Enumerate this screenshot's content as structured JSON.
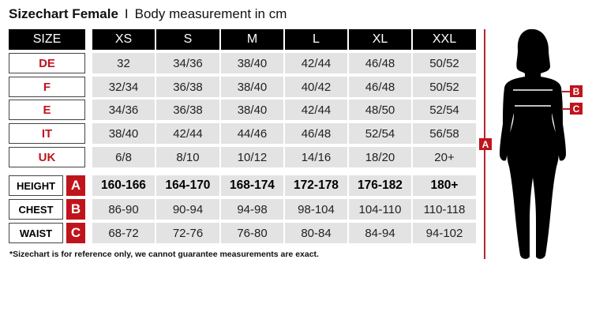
{
  "title": {
    "bold": "Sizechart Female",
    "separator": "I",
    "subtitle": "Body measurement in cm"
  },
  "table": {
    "header_label": "SIZE",
    "sizes": [
      "XS",
      "S",
      "M",
      "L",
      "XL",
      "XXL"
    ],
    "systems": [
      {
        "label": "DE",
        "values": [
          "32",
          "34/36",
          "38/40",
          "42/44",
          "46/48",
          "50/52"
        ]
      },
      {
        "label": "F",
        "values": [
          "32/34",
          "36/38",
          "38/40",
          "40/42",
          "46/48",
          "50/52"
        ]
      },
      {
        "label": "E",
        "values": [
          "34/36",
          "36/38",
          "38/40",
          "42/44",
          "48/50",
          "52/54"
        ]
      },
      {
        "label": "IT",
        "values": [
          "38/40",
          "42/44",
          "44/46",
          "46/48",
          "52/54",
          "56/58"
        ]
      },
      {
        "label": "UK",
        "values": [
          "6/8",
          "8/10",
          "10/12",
          "14/16",
          "18/20",
          "20+"
        ]
      }
    ],
    "measurements": [
      {
        "label": "HEIGHT",
        "badge": "A",
        "values": [
          "160-166",
          "164-170",
          "168-174",
          "172-178",
          "176-182",
          "180+"
        ]
      },
      {
        "label": "CHEST",
        "badge": "B",
        "values": [
          "86-90",
          "90-94",
          "94-98",
          "98-104",
          "104-110",
          "110-118"
        ]
      },
      {
        "label": "WAIST",
        "badge": "C",
        "values": [
          "68-72",
          "72-76",
          "76-80",
          "80-84",
          "84-94",
          "94-102"
        ]
      }
    ]
  },
  "figure": {
    "height_marker": "A",
    "chest_marker": "B",
    "waist_marker": "C"
  },
  "footnote": "*Sizechart is for reference only, we cannot guarantee measurements are exact.",
  "colors": {
    "accent": "#c0141c",
    "header_bg": "#000000",
    "cell_bg": "#e3e3e3"
  }
}
